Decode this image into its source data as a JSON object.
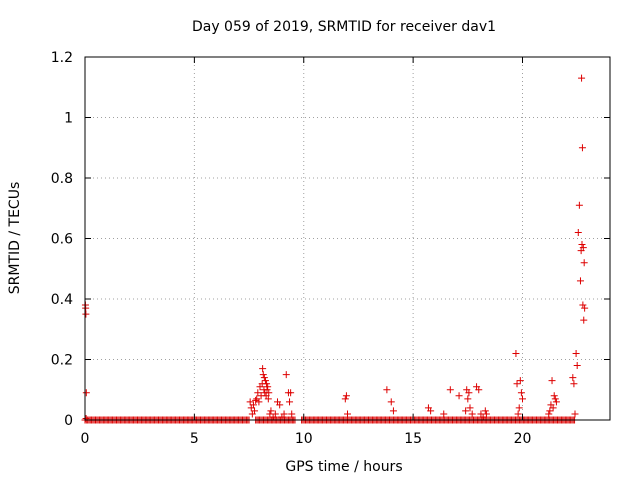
{
  "chart_data": {
    "type": "scatter",
    "title": "Day 059 of 2019, SRMTID for receiver dav1",
    "xlabel": "GPS time / hours",
    "ylabel": "SRMTID / TECUs",
    "xlim": [
      0,
      24
    ],
    "ylim": [
      0,
      1.2
    ],
    "xticks": [
      0,
      5,
      10,
      15,
      20
    ],
    "yticks": [
      0,
      0.2,
      0.4,
      0.6,
      0.8,
      1,
      1.2
    ],
    "ytick_labels": [
      "0",
      "0.2",
      "0.4",
      "0.6",
      "0.8",
      "1",
      "1.2"
    ],
    "grid": true,
    "legend": "none",
    "marker": "+",
    "color": "#dd0000",
    "series": [
      {
        "x": [
          0.02,
          0.04,
          0.06,
          0.03,
          0.05,
          7.55,
          7.6,
          7.65,
          7.7,
          7.75,
          7.8,
          7.85,
          7.9,
          7.95,
          8.0,
          8.05,
          8.1,
          8.12,
          8.15,
          8.18,
          8.2,
          8.22,
          8.25,
          8.28,
          8.3,
          8.32,
          8.35,
          8.38,
          8.4,
          8.45,
          8.5,
          8.6,
          8.7,
          8.8,
          8.9,
          9.0,
          9.1,
          9.2,
          9.3,
          9.35,
          9.4,
          9.45,
          11.9,
          11.95,
          12.0,
          13.8,
          14.0,
          14.1,
          15.7,
          15.8,
          16.4,
          16.7,
          17.1,
          17.4,
          17.45,
          17.5,
          17.55,
          17.6,
          17.7,
          17.9,
          18.0,
          18.1,
          18.2,
          18.3,
          18.35,
          19.7,
          19.75,
          19.8,
          19.85,
          19.9,
          19.95,
          20.0,
          21.2,
          21.25,
          21.3,
          21.35,
          21.4,
          21.45,
          21.5,
          21.55,
          22.3,
          22.35,
          22.4,
          22.45,
          22.5,
          22.55,
          22.6,
          22.65,
          22.68,
          22.7,
          22.72,
          22.74,
          22.76,
          22.78,
          22.8,
          22.82,
          22.84
        ],
        "y": [
          0.38,
          0.35,
          0.09,
          0.37,
          0.005,
          0.06,
          0.04,
          0.02,
          0.05,
          0.03,
          0.065,
          0.07,
          0.09,
          0.06,
          0.11,
          0.08,
          0.12,
          0.17,
          0.15,
          0.1,
          0.14,
          0.09,
          0.13,
          0.08,
          0.12,
          0.1,
          0.11,
          0.07,
          0.09,
          0.02,
          0.03,
          0.01,
          0.02,
          0.06,
          0.05,
          0.01,
          0.02,
          0.15,
          0.09,
          0.06,
          0.09,
          0.02,
          0.07,
          0.08,
          0.02,
          0.1,
          0.06,
          0.03,
          0.04,
          0.03,
          0.02,
          0.1,
          0.08,
          0.03,
          0.1,
          0.07,
          0.09,
          0.04,
          0.02,
          0.11,
          0.1,
          0.02,
          0.01,
          0.03,
          0.02,
          0.22,
          0.12,
          0.02,
          0.04,
          0.13,
          0.09,
          0.07,
          0.02,
          0.03,
          0.05,
          0.13,
          0.04,
          0.08,
          0.07,
          0.06,
          0.14,
          0.12,
          0.02,
          0.22,
          0.18,
          0.62,
          0.71,
          0.46,
          0.56,
          1.13,
          0.58,
          0.9,
          0.38,
          0.57,
          0.33,
          0.52,
          0.37
        ]
      }
    ],
    "baseline": {
      "y": 0,
      "segments": [
        [
          0.0,
          7.5
        ],
        [
          7.8,
          9.6
        ],
        [
          9.9,
          22.4
        ]
      ]
    }
  }
}
